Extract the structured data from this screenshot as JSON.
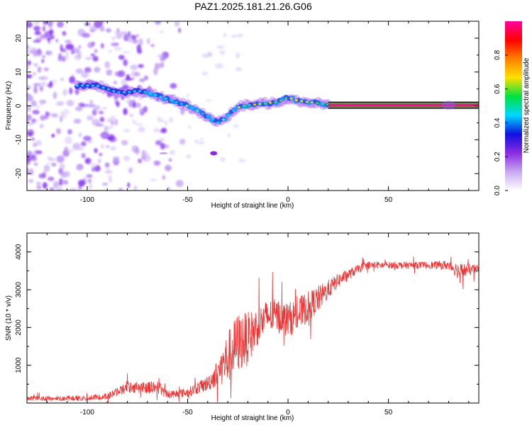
{
  "title": "PAZ1.2025.181.21.26.G06",
  "chart_data": [
    {
      "type": "heatmap",
      "xlabel": "Height of straight line (km)",
      "ylabel": "Frequency (Hz)",
      "xlim": [
        -130,
        95
      ],
      "ylim": [
        -25,
        25
      ],
      "x_ticks": [
        -100,
        -50,
        0,
        50
      ],
      "y_ticks": [
        -20,
        -10,
        0,
        10,
        20
      ],
      "colorbar": {
        "label": "Normalized spectral amplitude",
        "range": [
          0,
          1
        ],
        "ticks": [
          0.0,
          0.2,
          0.4,
          0.6,
          0.8
        ],
        "colormap": [
          "#ffffff",
          "#c8a8f0",
          "#8a2be2",
          "#1010e0",
          "#00d8ff",
          "#00e040",
          "#ffe000",
          "#ff8000",
          "#ff0000",
          "#ff00a0"
        ]
      },
      "ridge": {
        "x": [
          -105,
          -95,
          -90,
          -85,
          -80,
          -75,
          -70,
          -65,
          -60,
          -55,
          -50,
          -45,
          -40,
          -35,
          -32,
          -28,
          -25,
          -20,
          -15,
          -10,
          -5,
          0,
          5,
          10,
          15,
          20,
          40,
          60,
          80,
          95
        ],
        "frequency_hz": [
          6,
          6,
          5,
          4,
          4,
          4.5,
          4,
          3,
          2,
          1,
          0,
          -1.5,
          -3,
          -5,
          -4,
          -2,
          -0.5,
          0.2,
          0.5,
          0.8,
          1.2,
          2.5,
          1.5,
          1.2,
          0.8,
          0.4,
          0.3,
          0.2,
          0.2,
          0.2
        ]
      },
      "tone_line": {
        "x_start": 20,
        "x_end": 95,
        "frequency_hz": 0.2
      },
      "isolated_feature": {
        "x": -37,
        "frequency_hz": -14
      },
      "noise_region_x": [
        -130,
        -85
      ]
    },
    {
      "type": "line",
      "xlabel": "Height of straight line (km)",
      "ylabel": "SNR (10 * v/v)",
      "xlim": [
        -130,
        95
      ],
      "ylim": [
        0,
        4500
      ],
      "x_ticks": [
        -100,
        -50,
        0,
        50
      ],
      "y_ticks": [
        1000,
        2000,
        3000,
        4000
      ],
      "color": "#ee3333",
      "envelope": {
        "x": [
          -130,
          -100,
          -90,
          -80,
          -65,
          -60,
          -50,
          -40,
          -35,
          -30,
          -25,
          -20,
          -15,
          -10,
          -5,
          0,
          5,
          10,
          15,
          20,
          25,
          30,
          35,
          40,
          50,
          60,
          70,
          80,
          85,
          95
        ],
        "mean": [
          120,
          130,
          180,
          420,
          420,
          230,
          280,
          520,
          800,
          1200,
          1600,
          1700,
          2050,
          2300,
          2300,
          2200,
          2350,
          2550,
          2750,
          3000,
          3250,
          3400,
          3550,
          3650,
          3650,
          3650,
          3650,
          3650,
          3500,
          3550
        ],
        "variability": [
          60,
          70,
          80,
          150,
          180,
          100,
          120,
          200,
          350,
          700,
          800,
          700,
          500,
          450,
          450,
          450,
          450,
          400,
          350,
          250,
          180,
          140,
          110,
          100,
          90,
          90,
          90,
          130,
          220,
          100
        ]
      }
    }
  ]
}
